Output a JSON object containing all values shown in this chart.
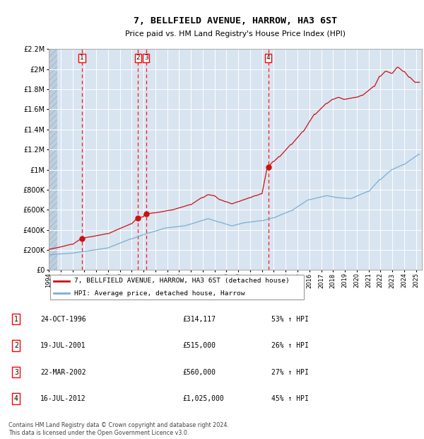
{
  "title": "7, BELLFIELD AVENUE, HARROW, HA3 6ST",
  "subtitle": "Price paid vs. HM Land Registry's House Price Index (HPI)",
  "ylim": [
    0,
    2200000
  ],
  "yticks": [
    0,
    200000,
    400000,
    600000,
    800000,
    1000000,
    1200000,
    1400000,
    1600000,
    1800000,
    2000000,
    2200000
  ],
  "ytick_labels": [
    "£0",
    "£200K",
    "£400K",
    "£600K",
    "£800K",
    "£1M",
    "£1.2M",
    "£1.4M",
    "£1.6M",
    "£1.8M",
    "£2M",
    "£2.2M"
  ],
  "xlim_start": 1994.0,
  "xlim_end": 2025.5,
  "xtick_years": [
    1994,
    1995,
    1996,
    1997,
    1998,
    1999,
    2000,
    2001,
    2002,
    2003,
    2004,
    2005,
    2006,
    2007,
    2008,
    2009,
    2010,
    2011,
    2012,
    2013,
    2014,
    2015,
    2016,
    2017,
    2018,
    2019,
    2020,
    2021,
    2022,
    2023,
    2024,
    2025
  ],
  "sale_points": [
    {
      "year": 1996.81,
      "price": 314117,
      "label": "1"
    },
    {
      "year": 2001.54,
      "price": 515000,
      "label": "2"
    },
    {
      "year": 2002.22,
      "price": 560000,
      "label": "3"
    },
    {
      "year": 2012.54,
      "price": 1025000,
      "label": "4"
    }
  ],
  "hpi_line_color": "#7aafd4",
  "price_line_color": "#cc1111",
  "plot_bg_color": "#d8e4f0",
  "hatch_region_color": "#bfcfdf",
  "legend_label_red": "7, BELLFIELD AVENUE, HARROW, HA3 6ST (detached house)",
  "legend_label_blue": "HPI: Average price, detached house, Harrow",
  "table_data": [
    {
      "num": "1",
      "date": "24-OCT-1996",
      "price": "£314,117",
      "pct": "53% ↑ HPI"
    },
    {
      "num": "2",
      "date": "19-JUL-2001",
      "price": "£515,000",
      "pct": "26% ↑ HPI"
    },
    {
      "num": "3",
      "date": "22-MAR-2002",
      "price": "£560,000",
      "pct": "27% ↑ HPI"
    },
    {
      "num": "4",
      "date": "16-JUL-2012",
      "price": "£1,025,000",
      "pct": "45% ↑ HPI"
    }
  ],
  "footnote": "Contains HM Land Registry data © Crown copyright and database right 2024.\nThis data is licensed under the Open Government Licence v3.0."
}
